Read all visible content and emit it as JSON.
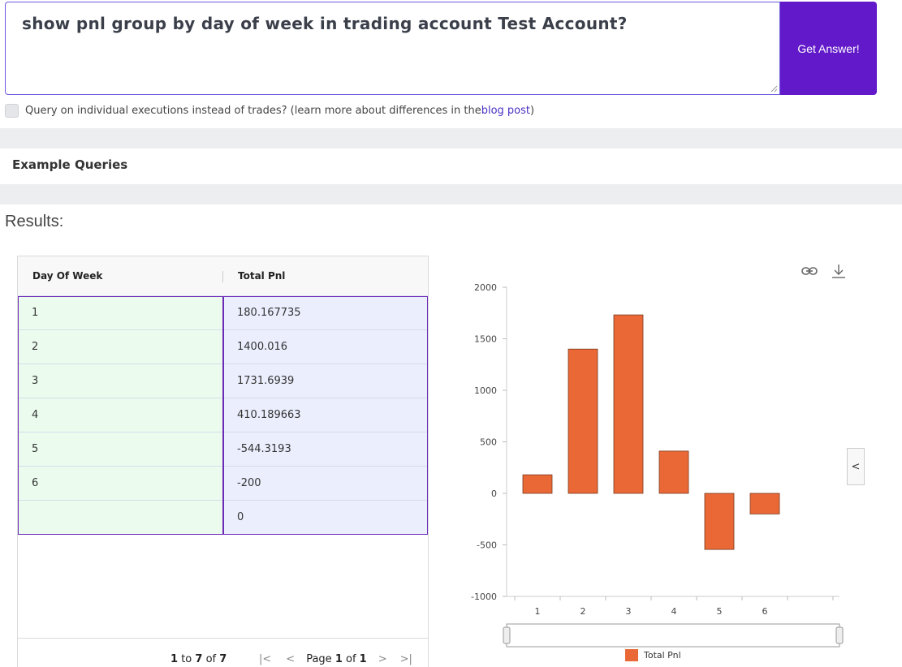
{
  "query": {
    "text": "show pnl group by day of week in trading account Test Account?",
    "submit_label": "Get Answer!"
  },
  "executions": {
    "label": "Query on individual executions instead of trades? (learn more about differences in the ",
    "link": "blog post",
    "suffix": ")"
  },
  "example_queries_label": "Example Queries",
  "results_label": "Results:",
  "table": {
    "columns": [
      "Day Of Week",
      "Total Pnl"
    ],
    "rows": [
      [
        "1",
        "180.167735"
      ],
      [
        "2",
        "1400.016"
      ],
      [
        "3",
        "1731.6939"
      ],
      [
        "4",
        "410.189663"
      ],
      [
        "5",
        "-544.3193"
      ],
      [
        "6",
        "-200"
      ],
      [
        "",
        "0"
      ]
    ],
    "pagination": {
      "range_from": "1",
      "range_to": "7",
      "total": "7",
      "page": "1",
      "pages": "1",
      "to_word": "to",
      "of_word": "of",
      "page_word": "Page"
    }
  },
  "chart_data": {
    "type": "bar",
    "categories": [
      "1",
      "2",
      "3",
      "4",
      "5",
      "6"
    ],
    "series": [
      {
        "name": "Total Pnl",
        "values": [
          180.167735,
          1400.016,
          1731.6939,
          410.189663,
          -544.3193,
          -200
        ],
        "color": "#e96835"
      }
    ],
    "yticks": [
      -1000,
      -500,
      0,
      500,
      1000,
      1500,
      2000
    ],
    "ylim": [
      -1000,
      2000
    ],
    "legend_position": "bottom-center",
    "grid": false
  },
  "icons": [
    "link-icon",
    "download-icon",
    "chevron-left-icon"
  ]
}
